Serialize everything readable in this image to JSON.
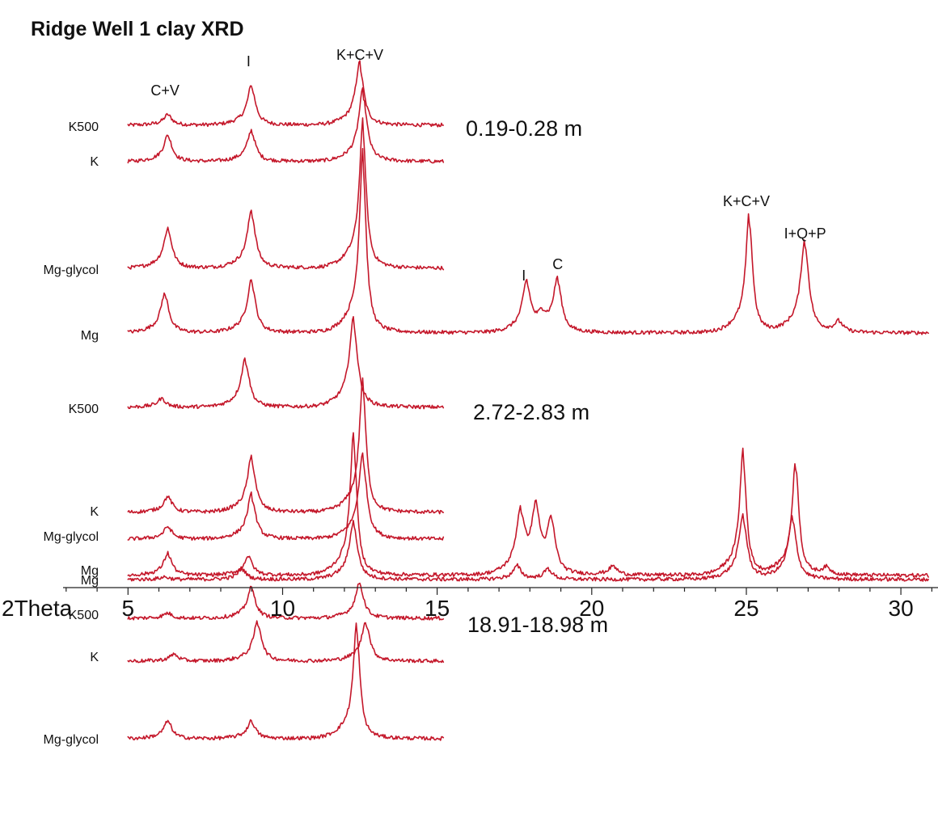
{
  "chart_data": {
    "type": "line",
    "title": "Ridge Well 1 clay XRD",
    "xlabel": "2Theta",
    "ylabel": "",
    "xlim": [
      2.9,
      31.2
    ],
    "x_ticks": [
      "5",
      "10",
      "15",
      "20",
      "25",
      "30"
    ],
    "y_values_shown": false,
    "grid": false,
    "line_color": "#c4172a",
    "samples": [
      {
        "depth": "0.19-0.28 m"
      },
      {
        "depth": "2.72-2.83 m"
      },
      {
        "depth": "18.91-18.98 m"
      }
    ],
    "series": [
      {
        "name": "K500",
        "sample": "0.19-0.28 m",
        "x_range": [
          5,
          15.2
        ],
        "baseline": 2,
        "peaks": [
          {
            "x": 6.3,
            "h": 12
          },
          {
            "x": 9.0,
            "h": 45
          },
          {
            "x": 12.5,
            "h": 70
          }
        ]
      },
      {
        "name": "K",
        "sample": "0.19-0.28 m",
        "x_range": [
          5,
          15.2
        ],
        "baseline": 2,
        "peaks": [
          {
            "x": 6.3,
            "h": 30
          },
          {
            "x": 9.0,
            "h": 35
          },
          {
            "x": 12.6,
            "h": 80
          }
        ]
      },
      {
        "name": "Mg-glycol",
        "sample": "0.19-0.28 m",
        "x_range": [
          5,
          15.2
        ],
        "baseline": 2,
        "peaks": [
          {
            "x": 6.3,
            "h": 45
          },
          {
            "x": 9.0,
            "h": 65
          },
          {
            "x": 12.6,
            "h": 165
          }
        ]
      },
      {
        "name": "Mg",
        "sample": "0.19-0.28 m",
        "x_range": [
          5,
          30.9
        ],
        "baseline": 2,
        "peaks": [
          {
            "x": 6.2,
            "h": 45
          },
          {
            "x": 9.0,
            "h": 60
          },
          {
            "x": 12.6,
            "h": 205
          },
          {
            "x": 17.9,
            "h": 55
          },
          {
            "x": 18.4,
            "h": 15
          },
          {
            "x": 18.9,
            "h": 60
          },
          {
            "x": 25.1,
            "h": 135
          },
          {
            "x": 26.9,
            "h": 105
          },
          {
            "x": 28.0,
            "h": 12
          }
        ]
      },
      {
        "name": "K500",
        "sample": "2.72-2.83 m",
        "x_range": [
          5,
          15.2
        ],
        "baseline": 2,
        "peaks": [
          {
            "x": 6.1,
            "h": 10
          },
          {
            "x": 8.8,
            "h": 55
          },
          {
            "x": 12.3,
            "h": 100
          }
        ]
      },
      {
        "name": "K",
        "sample": "2.72-2.83 m",
        "x_range": [
          5,
          15.2
        ],
        "baseline": 2,
        "peaks": [
          {
            "x": 6.3,
            "h": 18
          },
          {
            "x": 9.0,
            "h": 62
          },
          {
            "x": 12.6,
            "h": 150
          }
        ]
      },
      {
        "name": "Mg-glycol",
        "sample": "2.72-2.83 m",
        "x_range": [
          5,
          15.2
        ],
        "baseline": 2,
        "peaks": [
          {
            "x": 6.3,
            "h": 14
          },
          {
            "x": 9.0,
            "h": 50
          },
          {
            "x": 12.6,
            "h": 95
          }
        ]
      },
      {
        "name": "Mg",
        "sample": "2.72-2.83 m",
        "x_range": [
          5,
          30.9
        ],
        "baseline": 2,
        "peaks": [
          {
            "x": 6.2,
            "h": 3
          },
          {
            "x": 8.7,
            "h": 12
          },
          {
            "x": 12.3,
            "h": 65
          },
          {
            "x": 17.6,
            "h": 15
          },
          {
            "x": 18.6,
            "h": 12
          },
          {
            "x": 24.9,
            "h": 72
          },
          {
            "x": 26.5,
            "h": 70
          }
        ]
      },
      {
        "name": "K500",
        "sample": "18.91-18.98 m",
        "x_range": [
          5,
          15.2
        ],
        "baseline": 2,
        "peaks": [
          {
            "x": 6.3,
            "h": 6
          },
          {
            "x": 9.0,
            "h": 35
          },
          {
            "x": 12.5,
            "h": 40
          }
        ]
      },
      {
        "name": "K",
        "sample": "18.91-18.98 m",
        "x_range": [
          5,
          15.2
        ],
        "baseline": 2,
        "peaks": [
          {
            "x": 6.5,
            "h": 8
          },
          {
            "x": 9.2,
            "h": 45
          },
          {
            "x": 12.7,
            "h": 45
          }
        ]
      },
      {
        "name": "Mg-glycol",
        "sample": "18.91-18.98 m",
        "x_range": [
          5,
          15.2
        ],
        "baseline": 2,
        "peaks": [
          {
            "x": 6.3,
            "h": 20
          },
          {
            "x": 9.0,
            "h": 20
          },
          {
            "x": 12.4,
            "h": 130
          }
        ]
      },
      {
        "name": "Mg",
        "sample": "18.91-18.98 m",
        "x_range": [
          5,
          30.9
        ],
        "baseline": 2,
        "peaks": [
          {
            "x": 6.3,
            "h": 25
          },
          {
            "x": 8.9,
            "h": 22
          },
          {
            "x": 12.3,
            "h": 160
          },
          {
            "x": 17.7,
            "h": 65
          },
          {
            "x": 18.2,
            "h": 70
          },
          {
            "x": 18.7,
            "h": 60
          },
          {
            "x": 20.7,
            "h": 10
          },
          {
            "x": 24.9,
            "h": 140
          },
          {
            "x": 26.6,
            "h": 130
          },
          {
            "x": 27.6,
            "h": 8
          }
        ]
      }
    ],
    "peak_labels": [
      {
        "text": "C+V",
        "x": 6.2
      },
      {
        "text": "I",
        "x": 8.9
      },
      {
        "text": "K+C+V",
        "x": 12.5
      },
      {
        "text": "I",
        "x": 17.8
      },
      {
        "text": "C",
        "x": 18.9
      },
      {
        "text": "K+C+V",
        "x": 25.0
      },
      {
        "text": "I+Q+P",
        "x": 26.9
      }
    ]
  }
}
